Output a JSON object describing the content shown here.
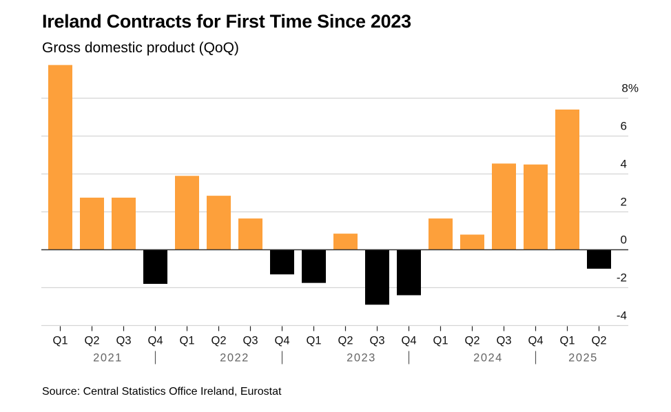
{
  "title": "Ireland Contracts for First Time Since 2023",
  "subtitle": "Gross domestic product (QoQ)",
  "source": "Source: Central Statistics Office Ireland, Eurostat",
  "colors": {
    "positive": "#fda03b",
    "negative": "#000000",
    "grid": "#d4d4d4",
    "zero": "#333333",
    "year": "#666666"
  },
  "chart_data": {
    "type": "bar",
    "title": "Ireland Contracts for First Time Since 2023",
    "subtitle": "Gross domestic product (QoQ)",
    "xlabel": "",
    "ylabel": "",
    "ylim": [
      -4.5,
      10
    ],
    "yticks": [
      {
        "value": 8,
        "label": "8%"
      },
      {
        "value": 6,
        "label": "6"
      },
      {
        "value": 4,
        "label": "4"
      },
      {
        "value": 2,
        "label": "2"
      },
      {
        "value": 0,
        "label": "0"
      },
      {
        "value": -2,
        "label": "-2"
      },
      {
        "value": -4,
        "label": "-4"
      }
    ],
    "grid": true,
    "y_axis_position": "right",
    "categories": [
      "Q1",
      "Q2",
      "Q3",
      "Q4",
      "Q1",
      "Q2",
      "Q3",
      "Q4",
      "Q1",
      "Q2",
      "Q3",
      "Q4",
      "Q1",
      "Q2",
      "Q3",
      "Q4",
      "Q1",
      "Q2"
    ],
    "years": [
      {
        "label": "2021",
        "start": 0,
        "end": 3
      },
      {
        "label": "2022",
        "start": 4,
        "end": 7
      },
      {
        "label": "2023",
        "start": 8,
        "end": 11
      },
      {
        "label": "2024",
        "start": 12,
        "end": 15
      },
      {
        "label": "2025",
        "start": 16,
        "end": 17
      }
    ],
    "values": [
      9.75,
      2.75,
      2.75,
      -1.8,
      3.9,
      2.85,
      1.65,
      -1.3,
      -1.75,
      0.85,
      -2.9,
      -2.4,
      1.65,
      0.8,
      4.55,
      4.5,
      7.4,
      -1.0
    ]
  }
}
